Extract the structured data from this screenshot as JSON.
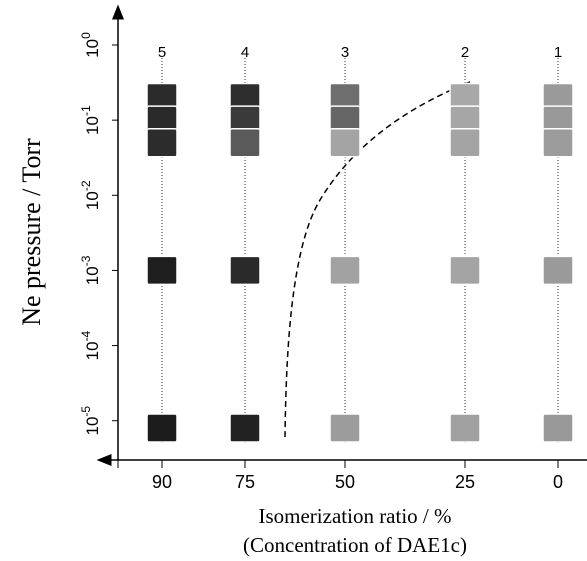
{
  "chart_data": {
    "type": "scatter",
    "y_label": "Ne pressure / Torr",
    "x_label": "Isomerization ratio  / %",
    "x_sublabel": "(Concentration of DAE1c)",
    "categories": [
      "5",
      "4",
      "3",
      "2",
      "1"
    ],
    "x_tick_labels": [
      90,
      75,
      50,
      25,
      0
    ],
    "log_scale": true,
    "ylim": [
      3e-06,
      2.75
    ],
    "yticks": [
      {
        "value": 1,
        "label": "10",
        "exponent": "0"
      },
      {
        "value": 0.1,
        "label": "10",
        "exponent": "-1"
      },
      {
        "value": 0.01,
        "label": "10",
        "exponent": "-2"
      },
      {
        "value": 0.001,
        "label": "10",
        "exponent": "-3"
      },
      {
        "value": 0.0001,
        "label": "10",
        "exponent": "-4"
      },
      {
        "value": 1e-05,
        "label": "10",
        "exponent": "-5"
      }
    ],
    "series": [
      {
        "values": [
          0.2,
          0.2,
          0.2,
          0.2,
          0.2
        ],
        "colors": [
          "#2b2b2b",
          "#2e2e2e",
          "#6e6e6e",
          "#a8a8a8",
          "#9a9a9a"
        ]
      },
      {
        "values": [
          0.1,
          0.1,
          0.1,
          0.1,
          0.1
        ],
        "colors": [
          "#2a2a2a",
          "#3a3a3a",
          "#666666",
          "#a6a6a6",
          "#999999"
        ]
      },
      {
        "values": [
          0.05,
          0.05,
          0.05,
          0.05,
          0.05
        ],
        "colors": [
          "#2c2c2c",
          "#5a5a5a",
          "#a4a4a4",
          "#a4a4a4",
          "#9c9c9c"
        ]
      },
      {
        "values": [
          0.001,
          0.001,
          0.001,
          0.001,
          0.001
        ],
        "colors": [
          "#1e1e1e",
          "#2a2a2a",
          "#a2a2a2",
          "#a4a4a4",
          "#9a9a9a"
        ]
      },
      {
        "values": [
          8e-06,
          8e-06,
          8e-06,
          8e-06,
          8e-06
        ],
        "colors": [
          "#1c1c1c",
          "#222222",
          "#9c9c9c",
          "#a0a0a0",
          "#999999"
        ]
      }
    ]
  }
}
